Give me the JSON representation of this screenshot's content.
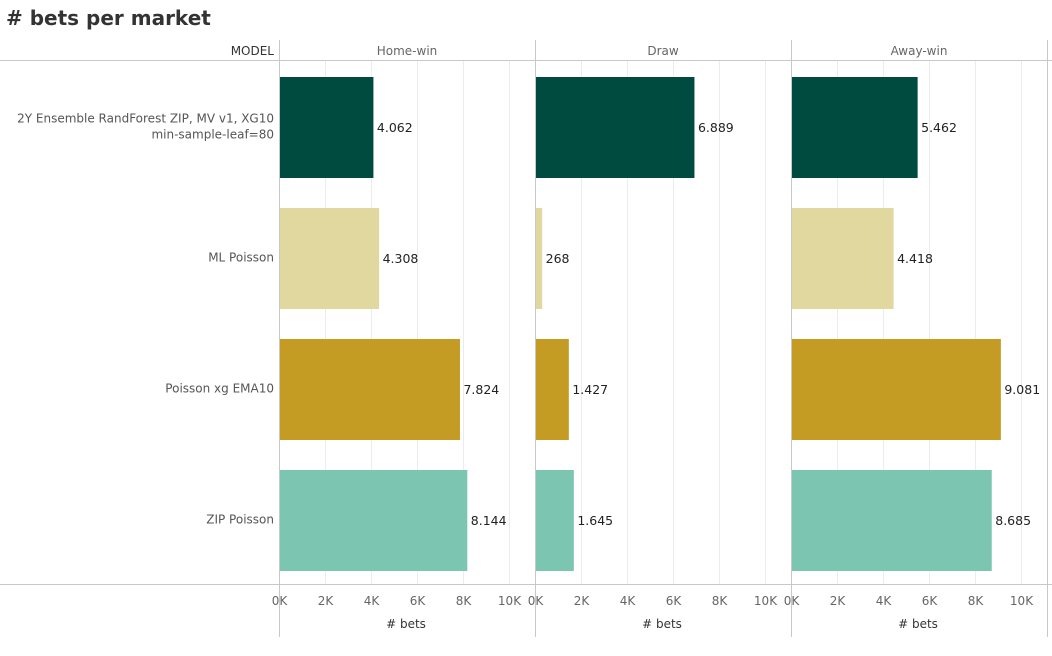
{
  "chart_data": {
    "type": "bar",
    "orientation": "horizontal",
    "title": "# bets per market",
    "row_header": "MODEL",
    "categories": [
      [
        "2Y Ensemble RandForest ZIP, MV v1, XG10",
        "min-sample-leaf=80"
      ],
      [
        "ML Poisson"
      ],
      [
        "Poisson xg EMA10"
      ],
      [
        "ZIP Poisson"
      ]
    ],
    "category_colors": [
      "#004b40",
      "#e0d89e",
      "#c49b23",
      "#7bc5b1"
    ],
    "panels": [
      {
        "name": "Home-win",
        "values": [
          4062,
          4308,
          7824,
          8144
        ],
        "labels": [
          "4.062",
          "4.308",
          "7.824",
          "8.144"
        ]
      },
      {
        "name": "Draw",
        "values": [
          6889,
          268,
          1427,
          1645
        ],
        "labels": [
          "6.889",
          "268",
          "1.427",
          "1.645"
        ]
      },
      {
        "name": "Away-win",
        "values": [
          5462,
          4418,
          9081,
          8685
        ],
        "labels": [
          "5.462",
          "4.418",
          "9.081",
          "8.685"
        ]
      }
    ],
    "xlabel": "# bets",
    "xlim": [
      0,
      11500
    ],
    "ticks": [
      0,
      2000,
      4000,
      6000,
      8000,
      10000
    ],
    "tick_labels": [
      "0K",
      "2K",
      "4K",
      "6K",
      "8K",
      "10K"
    ],
    "grid": true,
    "gridline_color": "#ececec",
    "axis_line_color": "#c8c8c8"
  }
}
